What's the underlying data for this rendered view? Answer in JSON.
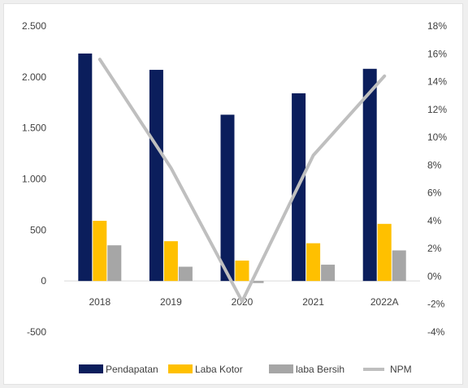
{
  "chart_data": {
    "type": "bar",
    "categories": [
      "2018",
      "2019",
      "2020",
      "2021",
      "2022A"
    ],
    "series": [
      {
        "name": "Pendapatan",
        "kind": "bar",
        "axis": "left",
        "color": "#0b1e5c",
        "values": [
          2230,
          2070,
          1630,
          1840,
          2080
        ]
      },
      {
        "name": "Laba Kotor",
        "kind": "bar",
        "axis": "left",
        "color": "#ffc000",
        "values": [
          590,
          390,
          200,
          370,
          560
        ]
      },
      {
        "name": "laba Bersih",
        "kind": "bar",
        "axis": "left",
        "color": "#a6a6a6",
        "values": [
          350,
          140,
          -20,
          160,
          300
        ]
      },
      {
        "name": "NPM",
        "kind": "line",
        "axis": "right",
        "color": "#bfbfbf",
        "values": [
          15.6,
          7.8,
          -1.8,
          8.7,
          14.4
        ]
      }
    ],
    "left_axis": {
      "min": -500,
      "max": 2500,
      "ticks": [
        "-500",
        "0",
        "500",
        "1.000",
        "1.500",
        "2.000",
        "2.500"
      ],
      "tick_values": [
        -500,
        0,
        500,
        1000,
        1500,
        2000,
        2500
      ]
    },
    "right_axis": {
      "min": -4,
      "max": 18,
      "ticks": [
        "-4%",
        "-2%",
        "0%",
        "2%",
        "4%",
        "6%",
        "8%",
        "10%",
        "12%",
        "14%",
        "16%",
        "18%"
      ],
      "tick_values": [
        -4,
        -2,
        0,
        2,
        4,
        6,
        8,
        10,
        12,
        14,
        16,
        18
      ]
    },
    "grid": false,
    "legend_position": "bottom"
  }
}
